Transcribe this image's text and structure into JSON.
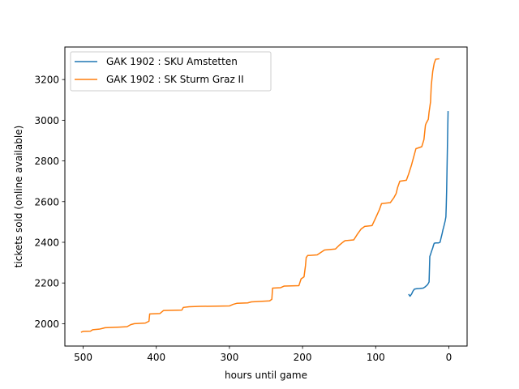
{
  "chart_data": {
    "type": "line",
    "xlabel": "hours until game",
    "ylabel": "tickets sold (online available)",
    "xlim": [
      525,
      -25
    ],
    "ylim": [
      1890,
      3360
    ],
    "x_ticks": [
      500,
      400,
      300,
      200,
      100,
      0
    ],
    "y_ticks": [
      2000,
      2200,
      2400,
      2600,
      2800,
      3000,
      3200
    ],
    "x_inverted": true,
    "grid": false,
    "legend_position": "upper-left",
    "series": [
      {
        "name": "GAK 1902 : SKU Amstetten",
        "color": "#1f77b4",
        "points": [
          [
            55,
            2145
          ],
          [
            53,
            2135
          ],
          [
            51,
            2145
          ],
          [
            49,
            2160
          ],
          [
            47,
            2170
          ],
          [
            44,
            2172
          ],
          [
            40,
            2173
          ],
          [
            35,
            2175
          ],
          [
            32,
            2182
          ],
          [
            29,
            2192
          ],
          [
            27,
            2205
          ],
          [
            26,
            2330
          ],
          [
            25,
            2340
          ],
          [
            24,
            2352
          ],
          [
            23,
            2362
          ],
          [
            22,
            2372
          ],
          [
            21,
            2385
          ],
          [
            20,
            2395
          ],
          [
            18,
            2397
          ],
          [
            14,
            2397
          ],
          [
            12,
            2400
          ],
          [
            11,
            2415
          ],
          [
            10,
            2430
          ],
          [
            9,
            2445
          ],
          [
            8,
            2462
          ],
          [
            7,
            2475
          ],
          [
            6,
            2490
          ],
          [
            5,
            2505
          ],
          [
            4,
            2525
          ],
          [
            3.5,
            2580
          ],
          [
            3,
            2650
          ],
          [
            2.5,
            2750
          ],
          [
            2,
            2850
          ],
          [
            1.5,
            2950
          ],
          [
            1,
            3045
          ]
        ]
      },
      {
        "name": "GAK 1902 : SK Sturm Graz II",
        "color": "#ff7f0e",
        "points": [
          [
            503,
            1958
          ],
          [
            500,
            1962
          ],
          [
            490,
            1963
          ],
          [
            487,
            1970
          ],
          [
            478,
            1973
          ],
          [
            470,
            1980
          ],
          [
            450,
            1983
          ],
          [
            440,
            1985
          ],
          [
            435,
            1995
          ],
          [
            430,
            2000
          ],
          [
            415,
            2003
          ],
          [
            410,
            2012
          ],
          [
            409,
            2048
          ],
          [
            395,
            2050
          ],
          [
            390,
            2065
          ],
          [
            365,
            2067
          ],
          [
            363,
            2080
          ],
          [
            355,
            2083
          ],
          [
            340,
            2085
          ],
          [
            300,
            2087
          ],
          [
            295,
            2095
          ],
          [
            290,
            2100
          ],
          [
            275,
            2102
          ],
          [
            270,
            2107
          ],
          [
            245,
            2112
          ],
          [
            242,
            2120
          ],
          [
            241,
            2175
          ],
          [
            230,
            2177
          ],
          [
            225,
            2185
          ],
          [
            205,
            2187
          ],
          [
            202,
            2220
          ],
          [
            198,
            2230
          ],
          [
            196,
            2285
          ],
          [
            195,
            2325
          ],
          [
            193,
            2335
          ],
          [
            180,
            2338
          ],
          [
            175,
            2350
          ],
          [
            170,
            2362
          ],
          [
            155,
            2367
          ],
          [
            150,
            2385
          ],
          [
            145,
            2400
          ],
          [
            142,
            2408
          ],
          [
            130,
            2412
          ],
          [
            125,
            2440
          ],
          [
            120,
            2465
          ],
          [
            115,
            2478
          ],
          [
            105,
            2482
          ],
          [
            100,
            2520
          ],
          [
            95,
            2560
          ],
          [
            92,
            2590
          ],
          [
            80,
            2595
          ],
          [
            75,
            2620
          ],
          [
            72,
            2640
          ],
          [
            70,
            2670
          ],
          [
            67,
            2700
          ],
          [
            58,
            2705
          ],
          [
            55,
            2735
          ],
          [
            51,
            2780
          ],
          [
            48,
            2820
          ],
          [
            45,
            2860
          ],
          [
            37,
            2870
          ],
          [
            34,
            2905
          ],
          [
            32,
            2975
          ],
          [
            31,
            2985
          ],
          [
            28,
            3005
          ],
          [
            27,
            3040
          ],
          [
            25,
            3090
          ],
          [
            24,
            3170
          ],
          [
            22,
            3240
          ],
          [
            20,
            3280
          ],
          [
            18,
            3300
          ],
          [
            13,
            3302
          ]
        ]
      }
    ]
  }
}
